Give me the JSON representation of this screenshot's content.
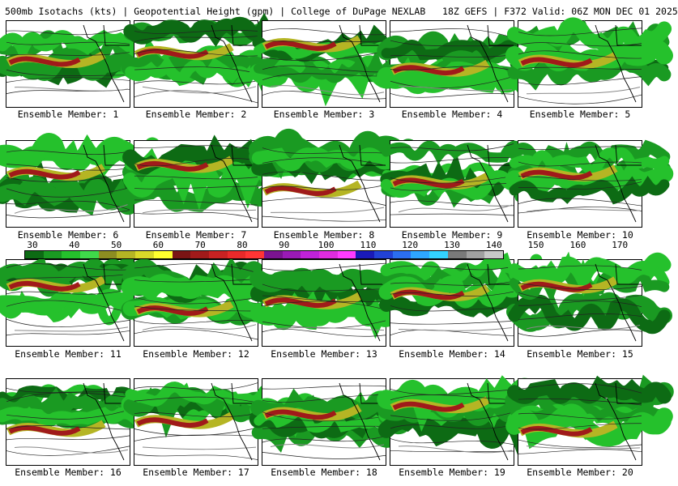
{
  "title": "500mb Isotachs (kts) | Geopotential Height (gpm) | College of DuPage NEXLAB   18Z GEFS | F372 Valid: 06Z MON DEC 01 2025",
  "colorbar": {
    "ticks": [
      "30",
      "40",
      "50",
      "60",
      "70",
      "80",
      "90",
      "100",
      "110",
      "120",
      "130",
      "140",
      "150",
      "160",
      "170"
    ],
    "colors": [
      "#0d6b14",
      "#1a9a22",
      "#25c12c",
      "#3fd94a",
      "#8d8d21",
      "#b5b524",
      "#d9d929",
      "#ffff2e",
      "#7a1414",
      "#a01a1a",
      "#c82222",
      "#e82a2a",
      "#ff3535",
      "#7b1490",
      "#9a1ab5",
      "#c022d9",
      "#e02ce0",
      "#ff3bff",
      "#1a1ab8",
      "#2242d6",
      "#2b6ef0",
      "#2ea6ff",
      "#33d3ff",
      "#7a7a7a",
      "#a0a0a0",
      "#c8c8c8"
    ]
  },
  "panels": [
    {
      "caption": "Ensemble Member: 1"
    },
    {
      "caption": "Ensemble Member: 2"
    },
    {
      "caption": "Ensemble Member: 3"
    },
    {
      "caption": "Ensemble Member: 4"
    },
    {
      "caption": "Ensemble Member: 5"
    },
    {
      "caption": "Ensemble Member: 6"
    },
    {
      "caption": "Ensemble Member: 7"
    },
    {
      "caption": "Ensemble Member: 8"
    },
    {
      "caption": "Ensemble Member: 9"
    },
    {
      "caption": "Ensemble Member: 10"
    },
    {
      "caption": "Ensemble Member: 11"
    },
    {
      "caption": "Ensemble Member: 12"
    },
    {
      "caption": "Ensemble Member: 13"
    },
    {
      "caption": "Ensemble Member: 14"
    },
    {
      "caption": "Ensemble Member: 15"
    },
    {
      "caption": "Ensemble Member: 16"
    },
    {
      "caption": "Ensemble Member: 17"
    },
    {
      "caption": "Ensemble Member: 18"
    },
    {
      "caption": "Ensemble Member: 19"
    },
    {
      "caption": "Ensemble Member: 20"
    }
  ]
}
